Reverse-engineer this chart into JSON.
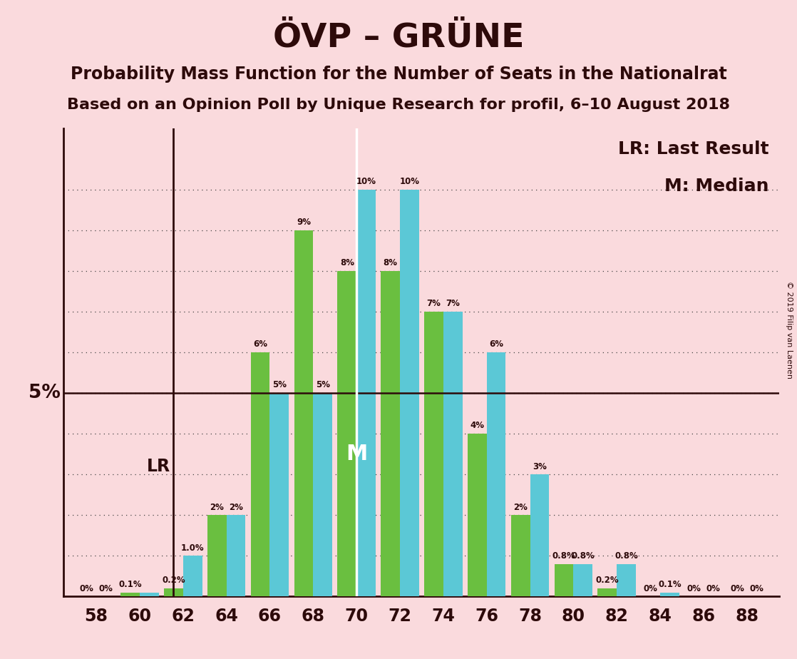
{
  "title": "ÖVP – GRÜNE",
  "subtitle1": "Probability Mass Function for the Number of Seats in the Nationalrat",
  "subtitle2": "Based on an Opinion Poll by Unique Research for profil, 6–10 August 2018",
  "legend_lr": "LR: Last Result",
  "legend_m": "M: Median",
  "copyright": "© 2019 Filip van Laenen",
  "background_color": "#fadadd",
  "bar_color_green": "#6abf40",
  "bar_color_cyan": "#5bc8d6",
  "seats": [
    58,
    60,
    62,
    64,
    66,
    68,
    70,
    72,
    74,
    76,
    78,
    80,
    82,
    84,
    86,
    88
  ],
  "green_values": [
    0.0,
    0.1,
    0.2,
    2.0,
    6.0,
    9.0,
    8.0,
    8.0,
    7.0,
    4.0,
    2.0,
    0.8,
    0.2,
    0.0,
    0.0,
    0.0
  ],
  "cyan_values": [
    0.0,
    0.1,
    1.0,
    2.0,
    5.0,
    5.0,
    10.0,
    10.0,
    7.0,
    6.0,
    3.0,
    0.8,
    0.8,
    0.1,
    0.0,
    0.0
  ],
  "bar_labels_green": [
    "0%",
    "0.1%",
    "0.2%",
    "2%",
    "6%",
    "9%",
    "8%",
    "8%",
    "7%",
    "4%",
    "2%",
    "0.8%",
    "0.2%",
    "0%",
    "0%",
    "0%"
  ],
  "bar_labels_cyan": [
    "0%",
    "",
    "1.0%",
    "2%",
    "5%",
    "5%",
    "10%",
    "10%",
    "7%",
    "6%",
    "3%",
    "0.8%",
    "0.8%",
    "0.1%",
    "0%",
    "0%"
  ],
  "lr_seat_idx": 2,
  "median_seat_idx": 6,
  "ylim": [
    0,
    11.5
  ],
  "text_color": "#2d0a0a",
  "dotted_y": [
    1,
    2,
    3,
    4,
    5,
    6,
    7,
    8,
    9,
    10
  ]
}
